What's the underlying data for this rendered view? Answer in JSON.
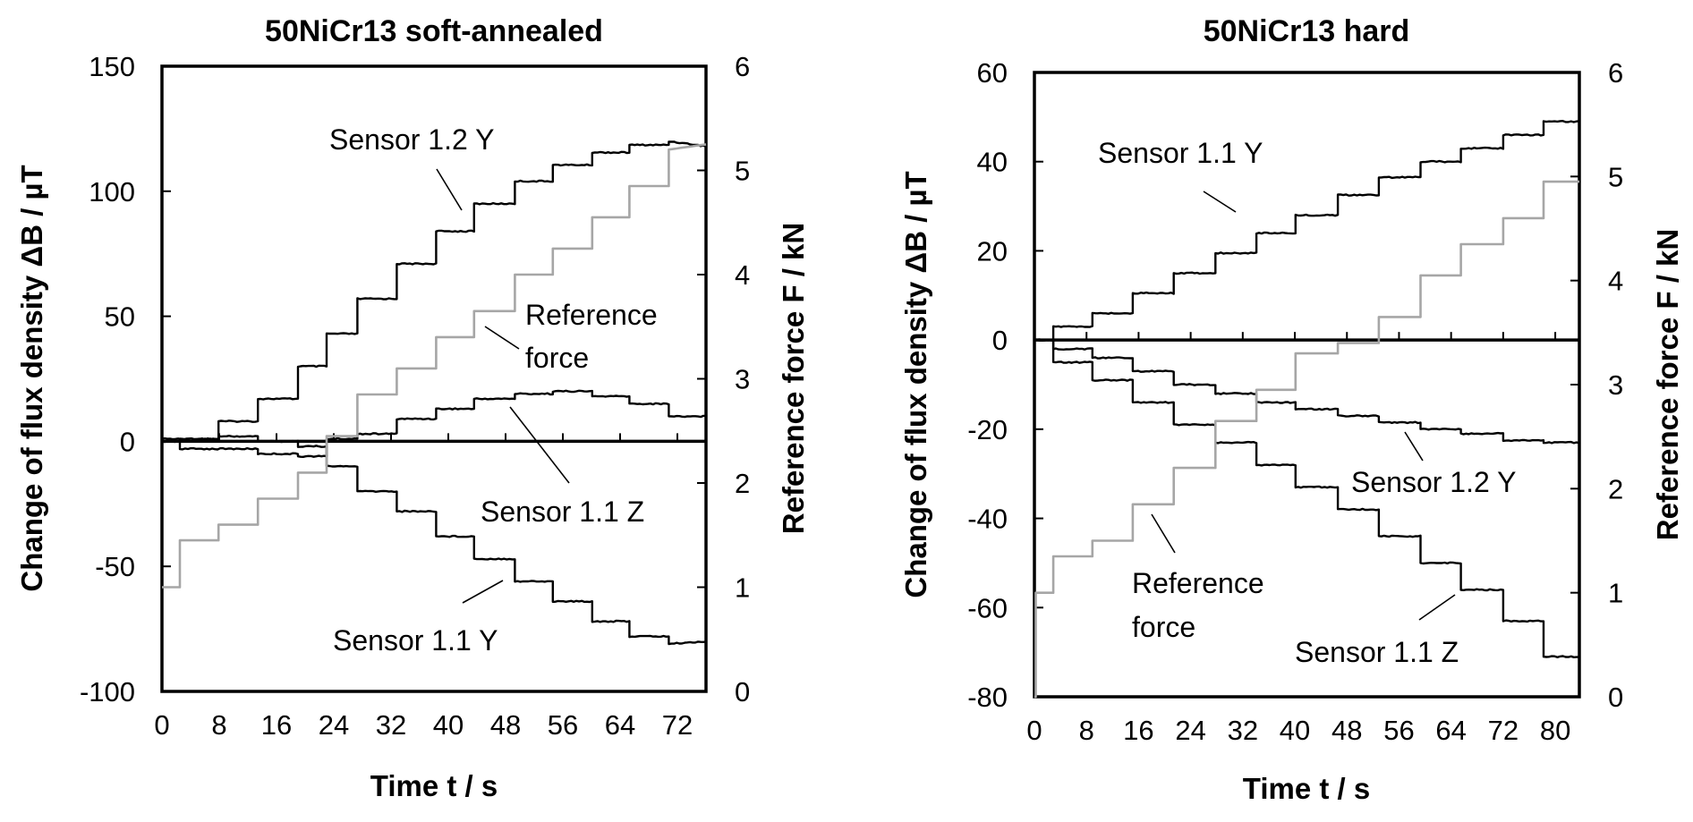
{
  "chart_data": [
    {
      "type": "line",
      "title": "50NiCr13 soft-annealed",
      "xlabel": "Time t / s",
      "ylabel": "Change of flux density ΔB / µT",
      "y2label": "Reference force F / kN",
      "xlim": [
        0,
        76
      ],
      "ylim": [
        -100,
        150
      ],
      "y2lim": [
        0,
        6
      ],
      "xticks": [
        "0",
        "8",
        "16",
        "24",
        "32",
        "40",
        "48",
        "56",
        "64",
        "72"
      ],
      "yticks": [
        "150",
        "100",
        "50",
        "0",
        "-50",
        "-100"
      ],
      "y2ticks": [
        "6",
        "5",
        "4",
        "3",
        "2",
        "1",
        "0"
      ],
      "grid": false,
      "series": [
        {
          "name": "Sensor 1.2 Y",
          "axis": "left",
          "color": "#000000",
          "steps": [
            [
              0,
              0
            ],
            [
              2.5,
              1
            ],
            [
              7.9,
              8
            ],
            [
              13.4,
              17
            ],
            [
              19,
              30
            ],
            [
              23,
              43
            ],
            [
              27.3,
              57
            ],
            [
              32.8,
              71
            ],
            [
              38.3,
              84
            ],
            [
              43.6,
              95
            ],
            [
              49.3,
              104
            ],
            [
              54.6,
              110.5
            ],
            [
              60.1,
              115.5
            ],
            [
              65.3,
              118.5
            ],
            [
              70.8,
              120
            ]
          ],
          "end": [
            76,
            118
          ]
        },
        {
          "name": "Sensor 1.1 Z",
          "axis": "left",
          "color": "#000000",
          "steps": [
            [
              0,
              0
            ],
            [
              2.5,
              -3
            ],
            [
              13.4,
              -5
            ],
            [
              19,
              -6
            ],
            [
              23,
              1
            ],
            [
              27.3,
              3
            ],
            [
              32.8,
              9
            ],
            [
              38.3,
              13
            ],
            [
              43.6,
              17
            ],
            [
              49.3,
              19
            ],
            [
              54.6,
              20
            ],
            [
              60.1,
              18
            ],
            [
              65.3,
              15
            ],
            [
              70.8,
              10
            ]
          ],
          "end": [
            76,
            10
          ]
        },
        {
          "name": "Sensor 1.1 Y",
          "axis": "left",
          "color": "#000000",
          "steps": [
            [
              0,
              1
            ],
            [
              7.9,
              2
            ],
            [
              13.4,
              0
            ],
            [
              19,
              -2
            ],
            [
              23,
              -10
            ],
            [
              27.3,
              -20
            ],
            [
              32.8,
              -28
            ],
            [
              38.3,
              -38
            ],
            [
              43.6,
              -47
            ],
            [
              49.3,
              -56
            ],
            [
              54.6,
              -64
            ],
            [
              60.1,
              -72
            ],
            [
              65.3,
              -78
            ],
            [
              70.8,
              -81
            ]
          ],
          "end": [
            76,
            -80
          ]
        },
        {
          "name": "Reference force",
          "axis": "right",
          "color": "#a6a6a6",
          "steps": [
            [
              0,
              1.0
            ],
            [
              2.5,
              1.45
            ],
            [
              7.9,
              1.6
            ],
            [
              13.4,
              1.85
            ],
            [
              19,
              2.1
            ],
            [
              23,
              2.45
            ],
            [
              27.3,
              2.85
            ],
            [
              32.8,
              3.1
            ],
            [
              38.3,
              3.4
            ],
            [
              43.6,
              3.65
            ],
            [
              49.3,
              4.0
            ],
            [
              54.6,
              4.25
            ],
            [
              60.1,
              4.55
            ],
            [
              65.3,
              4.85
            ],
            [
              70.8,
              5.2
            ]
          ],
          "end": [
            76,
            5.25
          ]
        }
      ],
      "annotations": [
        {
          "text": "Sensor 1.2 Y",
          "target": "Sensor 1.2 Y"
        },
        {
          "text": "Reference",
          "text2": "force",
          "target": "Reference force"
        },
        {
          "text": "Sensor 1.1 Z",
          "target": "Sensor 1.1 Z"
        },
        {
          "text": "Sensor 1.1 Y",
          "target": "Sensor 1.1 Y"
        }
      ]
    },
    {
      "type": "line",
      "title": "50NiCr13 hard",
      "xlabel": "Time t / s",
      "ylabel": "Change of flux density ΔB / µT",
      "y2label": "Reference force F / kN",
      "xlim": [
        0,
        83.7
      ],
      "ylim": [
        -80,
        60
      ],
      "y2lim": [
        0,
        6
      ],
      "xticks": [
        "0",
        "8",
        "16",
        "24",
        "32",
        "40",
        "48",
        "56",
        "64",
        "72",
        "80"
      ],
      "yticks": [
        "60",
        "40",
        "20",
        "0",
        "-20",
        "-40",
        "-60",
        "-80"
      ],
      "y2ticks": [
        "6",
        "5",
        "4",
        "3",
        "2",
        "1",
        "0"
      ],
      "grid": false,
      "series": [
        {
          "name": "Sensor 1.1 Y",
          "axis": "left",
          "color": "#000000",
          "steps": [
            [
              0,
              0
            ],
            [
              2.9,
              3
            ],
            [
              8.9,
              6
            ],
            [
              15.1,
              10.5
            ],
            [
              21.4,
              15
            ],
            [
              27.8,
              19.5
            ],
            [
              34.1,
              24
            ],
            [
              40.1,
              28
            ],
            [
              46.6,
              32.5
            ],
            [
              52.9,
              36.5
            ],
            [
              59.3,
              40
            ],
            [
              65.5,
              43
            ],
            [
              72,
              46
            ],
            [
              78.2,
              49
            ]
          ],
          "end": [
            83.7,
            49
          ]
        },
        {
          "name": "Sensor 1.2 Y",
          "axis": "left",
          "color": "#000000",
          "steps": [
            [
              0,
              0
            ],
            [
              2.9,
              -2
            ],
            [
              8.9,
              -4
            ],
            [
              15.1,
              -7
            ],
            [
              21.4,
              -10
            ],
            [
              27.8,
              -12
            ],
            [
              34.1,
              -14
            ],
            [
              40.1,
              -15.5
            ],
            [
              46.6,
              -17
            ],
            [
              52.9,
              -18.5
            ],
            [
              59.3,
              -20
            ],
            [
              65.5,
              -21
            ],
            [
              72,
              -22.5
            ],
            [
              78.2,
              -23
            ]
          ],
          "end": [
            83.7,
            -23
          ]
        },
        {
          "name": "Sensor 1.1 Z",
          "axis": "left",
          "color": "#000000",
          "steps": [
            [
              0,
              0
            ],
            [
              2.9,
              -5
            ],
            [
              8.9,
              -9
            ],
            [
              15.1,
              -14
            ],
            [
              21.4,
              -19
            ],
            [
              27.8,
              -23
            ],
            [
              34.1,
              -28
            ],
            [
              40.1,
              -33
            ],
            [
              46.6,
              -38
            ],
            [
              52.9,
              -44
            ],
            [
              59.3,
              -50
            ],
            [
              65.5,
              -56
            ],
            [
              72,
              -63
            ],
            [
              78.2,
              -71
            ]
          ],
          "end": [
            83.7,
            -71
          ]
        },
        {
          "name": "Reference force",
          "axis": "right",
          "color": "#a6a6a6",
          "steps": [
            [
              0,
              0
            ],
            [
              0.2,
              1.0
            ],
            [
              2.9,
              1.35
            ],
            [
              8.9,
              1.5
            ],
            [
              15.1,
              1.85
            ],
            [
              21.4,
              2.2
            ],
            [
              27.8,
              2.65
            ],
            [
              34.1,
              2.95
            ],
            [
              40.1,
              3.3
            ],
            [
              46.6,
              3.4
            ],
            [
              52.9,
              3.65
            ],
            [
              59.3,
              4.05
            ],
            [
              65.5,
              4.35
            ],
            [
              72,
              4.6
            ],
            [
              78.2,
              4.95
            ]
          ],
          "end": [
            83.7,
            4.95
          ]
        }
      ],
      "annotations": [
        {
          "text": "Sensor 1.1 Y",
          "target": "Sensor 1.1 Y"
        },
        {
          "text": "Sensor 1.2 Y",
          "target": "Sensor 1.2 Y"
        },
        {
          "text": "Reference",
          "text2": "force",
          "target": "Reference force"
        },
        {
          "text": "Sensor 1.1 Z",
          "target": "Sensor 1.1 Z"
        }
      ]
    }
  ]
}
